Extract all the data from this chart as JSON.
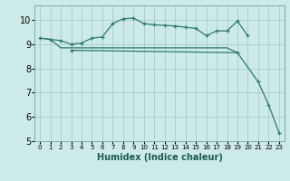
{
  "xlabel": "Humidex (Indice chaleur)",
  "xlim": [
    -0.5,
    23.5
  ],
  "ylim": [
    5,
    10.6
  ],
  "yticks": [
    5,
    6,
    7,
    8,
    9,
    10
  ],
  "xticks": [
    0,
    1,
    2,
    3,
    4,
    5,
    6,
    7,
    8,
    9,
    10,
    11,
    12,
    13,
    14,
    15,
    16,
    17,
    18,
    19,
    20,
    21,
    22,
    23
  ],
  "bg_color": "#cceae7",
  "grid_color": "#aacccc",
  "line_color": "#2d7a6e",
  "series": [
    {
      "x": [
        0,
        1,
        2,
        3,
        4,
        5,
        6,
        7,
        8,
        9,
        10,
        11,
        12,
        13,
        14,
        15,
        16,
        17,
        18,
        19,
        20
      ],
      "y": [
        9.25,
        9.2,
        9.15,
        9.0,
        9.05,
        9.25,
        9.3,
        9.85,
        10.05,
        10.08,
        9.85,
        9.8,
        9.78,
        9.75,
        9.7,
        9.65,
        9.35,
        9.55,
        9.55,
        9.95,
        9.35
      ],
      "marker": true
    },
    {
      "x": [
        0,
        1,
        2,
        3,
        4,
        5,
        6,
        7,
        8,
        9,
        10,
        11,
        12,
        13,
        14,
        15,
        16,
        17,
        18,
        19
      ],
      "y": [
        9.25,
        9.2,
        8.85,
        8.85,
        8.85,
        8.85,
        8.85,
        8.85,
        8.85,
        8.85,
        8.85,
        8.85,
        8.85,
        8.85,
        8.85,
        8.85,
        8.85,
        8.85,
        8.85,
        8.65
      ],
      "marker": false
    },
    {
      "x": [
        3,
        19,
        21,
        22,
        23
      ],
      "y": [
        8.75,
        8.65,
        7.45,
        6.5,
        5.35
      ],
      "marker": true
    }
  ]
}
